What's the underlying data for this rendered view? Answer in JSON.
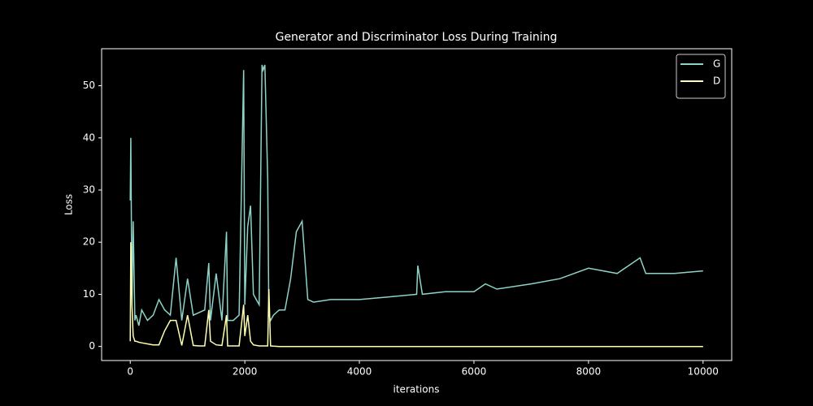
{
  "chart_data": {
    "type": "line",
    "title": "Generator and Discriminator Loss During Training",
    "x_label": "iterations",
    "y_label": "Loss",
    "x": [
      0,
      10,
      30,
      50,
      80,
      100,
      150,
      200,
      300,
      400,
      500,
      600,
      700,
      800,
      900,
      1000,
      1100,
      1200,
      1300,
      1370,
      1400,
      1500,
      1600,
      1680,
      1700,
      1800,
      1900,
      1980,
      2000,
      2050,
      2100,
      2150,
      2200,
      2250,
      2300,
      2320,
      2350,
      2400,
      2420,
      2450,
      2500,
      2600,
      2700,
      2800,
      2900,
      3000,
      3100,
      3200,
      3500,
      4000,
      4500,
      5000,
      5020,
      5100,
      5500,
      6000,
      6200,
      6400,
      7000,
      7500,
      8000,
      8500,
      8900,
      9000,
      9500,
      10000
    ],
    "series": [
      {
        "name": "G",
        "color": "#8dd3c7",
        "values": [
          28,
          40,
          8,
          24,
          5,
          6,
          4,
          7,
          5,
          6,
          9,
          7,
          6,
          17,
          5,
          13,
          6,
          6.5,
          7,
          16,
          5,
          14,
          5,
          22,
          5,
          5,
          6,
          53,
          8,
          23,
          27,
          10,
          9,
          8,
          54,
          53,
          54,
          32,
          6,
          5,
          6,
          7,
          7,
          13,
          22,
          24,
          9,
          8.5,
          9,
          9,
          9.5,
          10,
          15.5,
          10,
          10.5,
          10.5,
          12,
          11,
          12,
          13,
          15,
          14,
          17,
          14,
          14,
          14.5
        ]
      },
      {
        "name": "D",
        "color": "#ffffb3",
        "values": [
          1,
          20,
          8,
          2,
          1,
          1,
          0.8,
          0.7,
          0.5,
          0.3,
          0.3,
          3,
          5,
          5,
          0.2,
          6,
          0.2,
          0.1,
          0.1,
          7,
          1,
          0.3,
          0.2,
          6,
          0.1,
          0.1,
          0.1,
          8,
          2,
          6,
          1,
          0.3,
          0.2,
          0.1,
          0.1,
          0.1,
          0.1,
          0.1,
          11,
          0.1,
          0.05,
          0,
          0,
          0,
          0,
          0,
          0,
          0,
          0,
          0,
          0,
          0,
          0,
          0,
          0,
          0,
          0,
          0,
          0,
          0,
          0,
          0,
          0,
          0,
          0,
          0
        ]
      }
    ],
    "xlim": [
      -500,
      10500
    ],
    "ylim": [
      -2.7,
      57.1
    ],
    "xticks": [
      0,
      2000,
      4000,
      6000,
      8000,
      10000
    ],
    "yticks": [
      0,
      10,
      20,
      30,
      40,
      50
    ],
    "legend": "upper right"
  }
}
